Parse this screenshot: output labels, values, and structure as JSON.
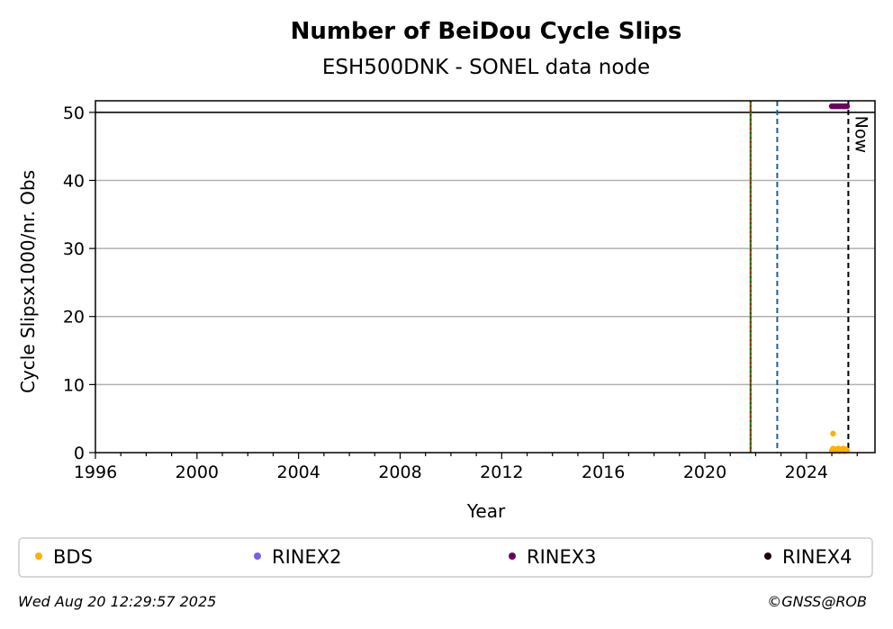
{
  "chart_data": {
    "type": "scatter",
    "title": "Number of BeiDou Cycle Slips",
    "subtitle": "ESH500DNK - SONEL data node",
    "xlabel": "Year",
    "ylabel": "Cycle Slipsx1000/nr. Obs",
    "xlim": [
      1996.0,
      2026.7
    ],
    "ylim": [
      0,
      51.7
    ],
    "x_ticks": [
      1996,
      2000,
      2004,
      2008,
      2012,
      2016,
      2020,
      2024
    ],
    "x_tick_labels": [
      "1996",
      "2000",
      "2004",
      "2008",
      "2012",
      "2016",
      "2020",
      "2024"
    ],
    "y_ticks": [
      0,
      10,
      20,
      30,
      40,
      50
    ],
    "y_tick_labels": [
      "0",
      "10",
      "20",
      "30",
      "40",
      "50"
    ],
    "grid": "y",
    "series": [
      {
        "name": "BDS",
        "color": "#ffb000",
        "points": [
          [
            2025.05,
            2.8
          ],
          [
            2025.0,
            0.3
          ],
          [
            2025.05,
            0.6
          ],
          [
            2025.1,
            0.4
          ],
          [
            2025.15,
            0.5
          ],
          [
            2025.2,
            0.3
          ],
          [
            2025.25,
            0.6
          ],
          [
            2025.3,
            0.4
          ],
          [
            2025.35,
            0.5
          ],
          [
            2025.4,
            0.3
          ],
          [
            2025.45,
            0.6
          ],
          [
            2025.5,
            0.4
          ],
          [
            2025.55,
            0.5
          ],
          [
            2025.6,
            0.3
          ],
          [
            2025.1,
            0.2
          ],
          [
            2025.3,
            0.2
          ],
          [
            2025.5,
            0.2
          ]
        ]
      },
      {
        "name": "RINEX2",
        "color": "#785ef0",
        "points": []
      },
      {
        "name": "RINEX3",
        "color": "#6a0060",
        "points": [
          [
            2025.0,
            50.9
          ],
          [
            2025.05,
            50.9
          ],
          [
            2025.1,
            50.9
          ],
          [
            2025.15,
            50.9
          ],
          [
            2025.2,
            50.9
          ],
          [
            2025.25,
            50.9
          ],
          [
            2025.3,
            50.9
          ],
          [
            2025.35,
            50.9
          ],
          [
            2025.4,
            50.9
          ],
          [
            2025.45,
            50.9
          ],
          [
            2025.5,
            50.9
          ],
          [
            2025.55,
            50.9
          ],
          [
            2025.6,
            50.9
          ]
        ]
      },
      {
        "name": "RINEX4",
        "color": "#1a0010",
        "points": []
      }
    ],
    "reference_lines": [
      {
        "kind": "horizontal",
        "y": 50,
        "color": "#000000",
        "style": "solid"
      },
      {
        "kind": "vertical",
        "x": 2021.8,
        "color": "#008000",
        "style": "solid"
      },
      {
        "kind": "vertical",
        "x": 2021.8,
        "color": "#cc0000",
        "style": "dotted"
      },
      {
        "kind": "vertical",
        "x": 2022.85,
        "color": "#1f5fa0",
        "style": "dashed"
      },
      {
        "kind": "vertical",
        "x": 2025.65,
        "color": "#000000",
        "style": "dashed",
        "label": "Now"
      }
    ],
    "legend": {
      "placement": "bottom",
      "entries": [
        "BDS",
        "RINEX2",
        "RINEX3",
        "RINEX4"
      ]
    }
  },
  "footer": {
    "timestamp": "Wed Aug 20 12:29:57 2025",
    "credit": "©GNSS@ROB"
  }
}
